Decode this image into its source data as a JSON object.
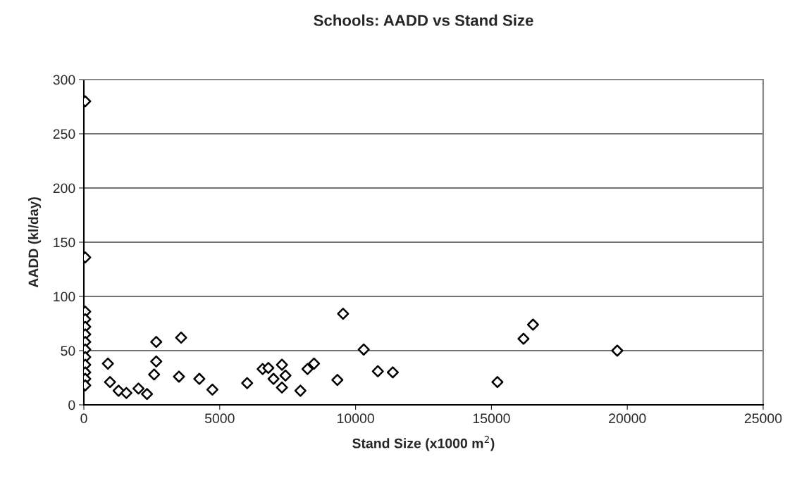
{
  "chart_data": {
    "type": "scatter",
    "title": "Schools: AADD vs Stand Size",
    "xlabel": "Stand Size (x1000 m$^{2}$)",
    "ylabel": "AADD (kl/day)",
    "x": [
      50,
      50,
      50,
      50,
      50,
      50,
      50,
      50,
      50,
      50,
      50,
      50,
      50,
      885,
      963,
      1277,
      1565,
      2010,
      2324,
      2664,
      2664,
      2586,
      3580,
      3500,
      4250,
      4730,
      6010,
      6580,
      6790,
      7290,
      6980,
      7420,
      7290,
      7970,
      8230,
      8470,
      9330,
      9540,
      10300,
      10820,
      11370,
      15220,
      16180,
      16530,
      19630
    ],
    "values": [
      280,
      136,
      86,
      79,
      72,
      65,
      58,
      51,
      44,
      37,
      30,
      24,
      18,
      38,
      21,
      13,
      11,
      15,
      10,
      58,
      40,
      28,
      62,
      26,
      24,
      14,
      20,
      33,
      34,
      37,
      24,
      27,
      16,
      13,
      33,
      38,
      23,
      84,
      51,
      31,
      30,
      21,
      61,
      74,
      50
    ],
    "xlim": [
      0,
      25000
    ],
    "ylim": [
      0,
      300
    ],
    "xticks": [
      0,
      5000,
      10000,
      15000,
      20000,
      25000
    ],
    "yticks": [
      0,
      50,
      100,
      150,
      200,
      250,
      300
    ],
    "grid": "y",
    "marker": "diamond",
    "color": "#000000"
  }
}
